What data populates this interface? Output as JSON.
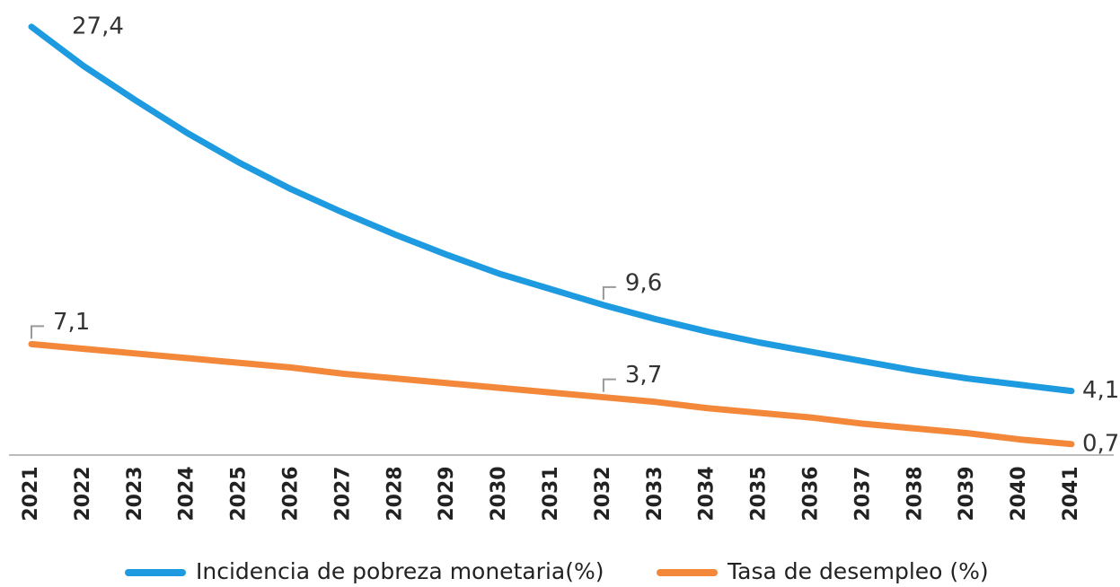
{
  "chart_data": {
    "type": "line",
    "categories": [
      "2021",
      "2022",
      "2023",
      "2024",
      "2025",
      "2026",
      "2027",
      "2028",
      "2029",
      "2030",
      "2031",
      "2032",
      "2033",
      "2034",
      "2035",
      "2036",
      "2037",
      "2038",
      "2039",
      "2040",
      "2041"
    ],
    "series": [
      {
        "name": "Incidencia de pobreza monetaria(%)",
        "color": "#1e9be0",
        "values": [
          27.4,
          24.9,
          22.7,
          20.6,
          18.7,
          17.0,
          15.5,
          14.1,
          12.8,
          11.6,
          10.6,
          9.6,
          8.7,
          7.9,
          7.2,
          6.6,
          6.0,
          5.4,
          4.9,
          4.5,
          4.1
        ],
        "value_labels": [
          "27,4",
          null,
          null,
          null,
          null,
          null,
          null,
          null,
          null,
          null,
          null,
          "9,6",
          null,
          null,
          null,
          null,
          null,
          null,
          null,
          null,
          "4,1"
        ]
      },
      {
        "name": "Tasa de desempleo (%)",
        "color": "#f3883a",
        "values": [
          7.1,
          6.8,
          6.5,
          6.2,
          5.9,
          5.6,
          5.2,
          4.9,
          4.6,
          4.3,
          4.0,
          3.7,
          3.4,
          3.0,
          2.7,
          2.4,
          2.0,
          1.7,
          1.4,
          1.0,
          0.7
        ],
        "value_labels": [
          "7,1",
          null,
          null,
          null,
          null,
          null,
          null,
          null,
          null,
          null,
          null,
          "3,7",
          null,
          null,
          null,
          null,
          null,
          null,
          null,
          null,
          "0,7"
        ]
      }
    ],
    "ylim": [
      0,
      29
    ],
    "legend": "bottom"
  }
}
